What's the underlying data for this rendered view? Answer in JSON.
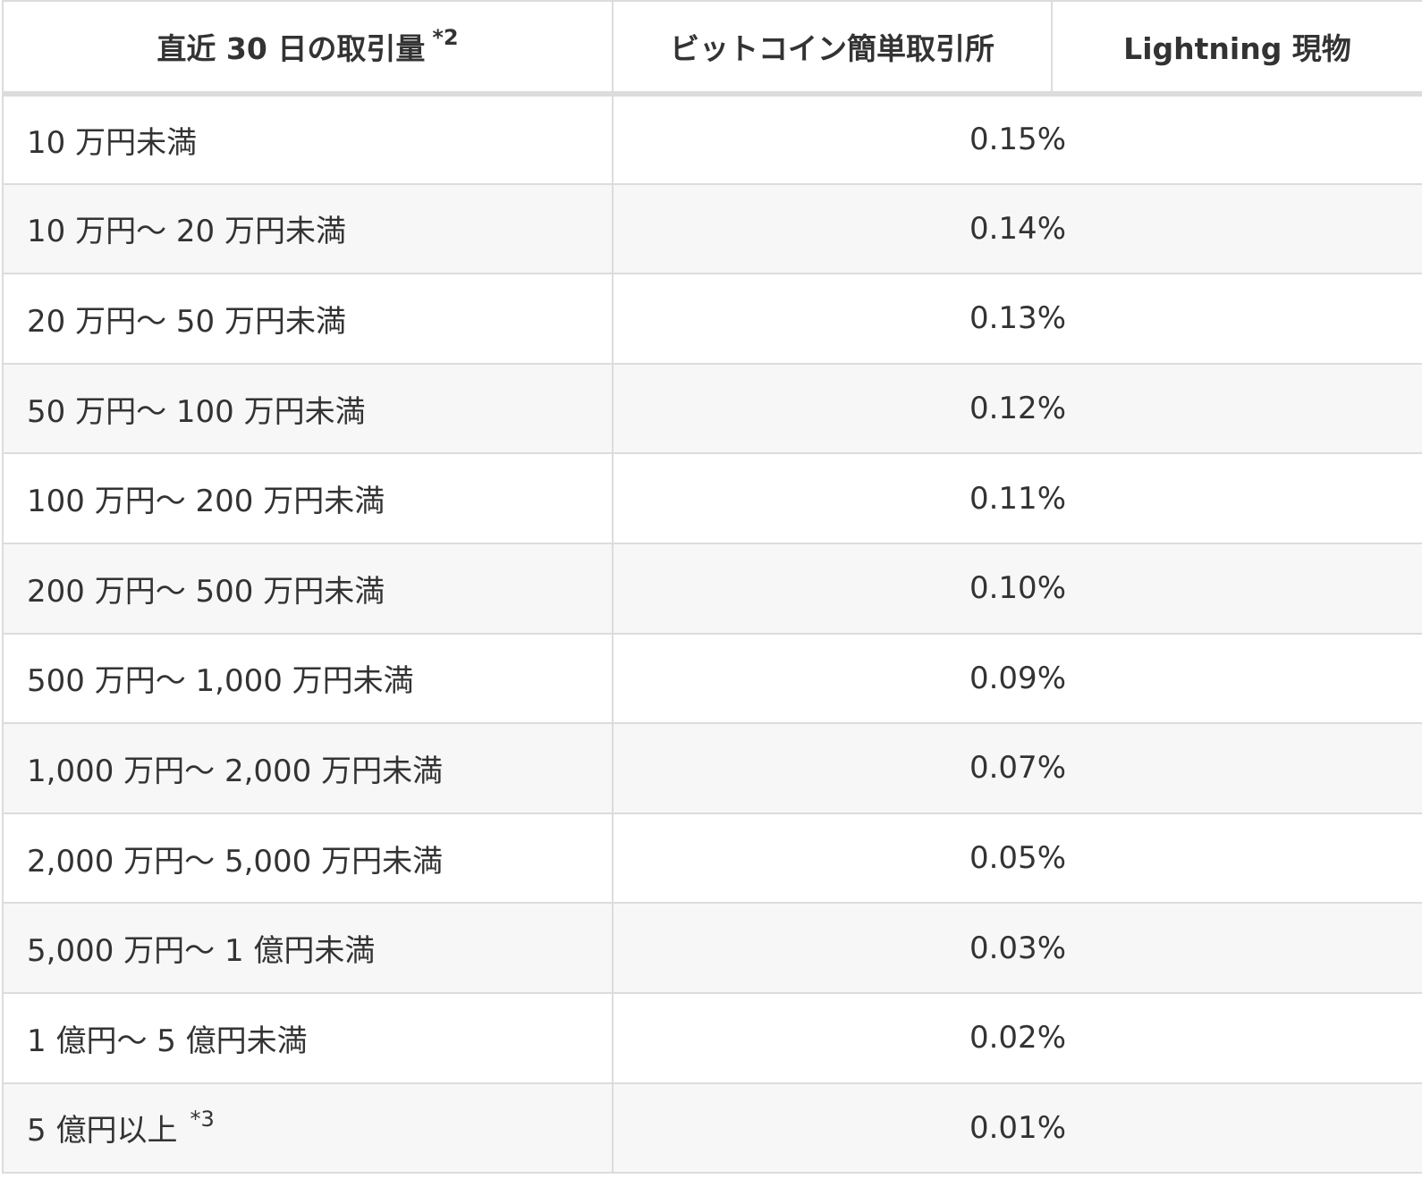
{
  "table": {
    "headers": {
      "volume": "直近 30 日の取引量",
      "volume_note": "*2",
      "exchange": "ビットコイン簡単取引所",
      "lightning": "Lightning 現物"
    },
    "rows": [
      {
        "volume": "10 万円未満",
        "note": "",
        "rate": "0.15%"
      },
      {
        "volume": "10 万円～ 20 万円未満",
        "note": "",
        "rate": "0.14%"
      },
      {
        "volume": "20 万円～ 50 万円未満",
        "note": "",
        "rate": "0.13%"
      },
      {
        "volume": "50 万円～ 100 万円未満",
        "note": "",
        "rate": "0.12%"
      },
      {
        "volume": "100 万円～ 200 万円未満",
        "note": "",
        "rate": "0.11%"
      },
      {
        "volume": "200 万円～ 500 万円未満",
        "note": "",
        "rate": "0.10%"
      },
      {
        "volume": "500 万円～ 1,000 万円未満",
        "note": "",
        "rate": "0.09%"
      },
      {
        "volume": "1,000 万円～ 2,000 万円未満",
        "note": "",
        "rate": "0.07%"
      },
      {
        "volume": "2,000 万円～ 5,000 万円未満",
        "note": "",
        "rate": "0.05%"
      },
      {
        "volume": "5,000 万円～ 1 億円未満",
        "note": "",
        "rate": "0.03%"
      },
      {
        "volume": "1 億円～ 5 億円未満",
        "note": "",
        "rate": "0.02%"
      },
      {
        "volume": "5 億円以上",
        "note": "*3",
        "rate": "0.01%"
      }
    ]
  }
}
